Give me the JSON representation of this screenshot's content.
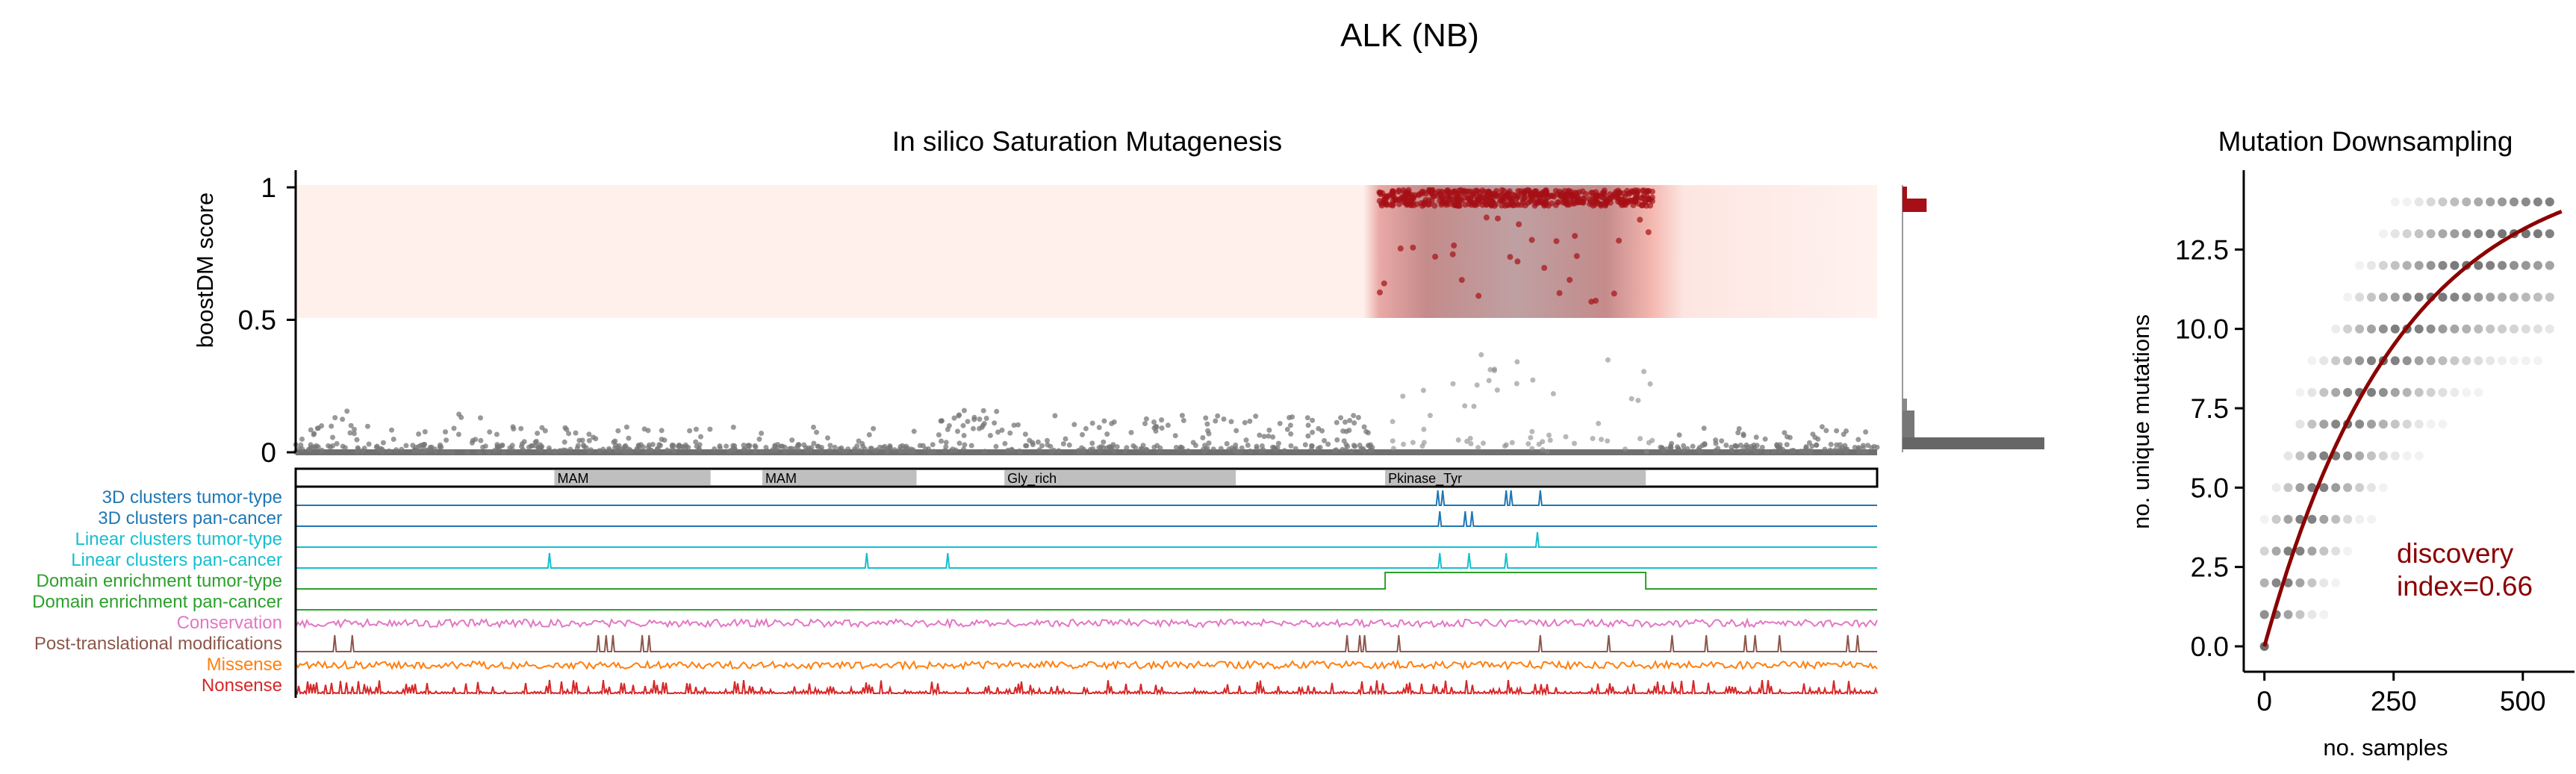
{
  "figure_title": "ALK (NB)",
  "colors": {
    "driver_red": "#a50f15",
    "passenger_gray": "#666666",
    "curve": "#8b0000",
    "track_3d": "#1f77b4",
    "track_linear": "#17becf",
    "track_domain": "#2ca02c",
    "track_conservation": "#e377c2",
    "track_ptm": "#8c564b",
    "track_missense": "#ff7f0e",
    "track_nonsense": "#d62728",
    "domain_fill": "#bfbfbf"
  },
  "chart_data": [
    {
      "type": "scatter",
      "title": "In silico Saturation Mutagenesis",
      "xlabel": "",
      "ylabel": "boostDM score",
      "ylim": [
        0,
        1
      ],
      "yticks": [
        "0",
        "0.5",
        "1"
      ],
      "protein_length": 1620,
      "driver_region": [
        1110,
        1390
      ],
      "domains": [
        {
          "name": "MAM",
          "start": 265,
          "end": 425
        },
        {
          "name": "MAM",
          "start": 478,
          "end": 636
        },
        {
          "name": "Gly_rich",
          "start": 726,
          "end": 963
        },
        {
          "name": "Pkinase_Tyr",
          "start": 1116,
          "end": 1383
        }
      ],
      "score_histogram": {
        "driver_fraction": 0.17,
        "passenger_fraction": 1.0
      },
      "tracks": [
        {
          "label": "3D clusters tumor-type",
          "color": "#1f77b4",
          "kind": "peaks",
          "peaks": [
            1170,
            1175,
            1240,
            1245,
            1275
          ]
        },
        {
          "label": "3D clusters pan-cancer",
          "color": "#1f77b4",
          "kind": "peaks",
          "peaks": [
            1172,
            1198,
            1205
          ]
        },
        {
          "label": "Linear clusters tumor-type",
          "color": "#17becf",
          "kind": "peaks",
          "peaks": [
            1272
          ]
        },
        {
          "label": "Linear clusters pan-cancer",
          "color": "#17becf",
          "kind": "peaks",
          "peaks": [
            260,
            585,
            668,
            1172,
            1202,
            1240
          ]
        },
        {
          "label": "Domain enrichment tumor-type",
          "color": "#2ca02c",
          "kind": "step",
          "start": 1116,
          "end": 1383
        },
        {
          "label": "Domain enrichment pan-cancer",
          "color": "#2ca02c",
          "kind": "flat"
        },
        {
          "label": "Conservation",
          "color": "#e377c2",
          "kind": "noise"
        },
        {
          "label": "Post-translational modifications",
          "color": "#8c564b",
          "kind": "ptm",
          "peaks": [
            40,
            58,
            310,
            318,
            325,
            355,
            362,
            1077,
            1090,
            1095,
            1130,
            1275,
            1345,
            1410,
            1445,
            1485,
            1495,
            1520,
            1590,
            1600
          ]
        },
        {
          "label": "Missense",
          "color": "#ff7f0e",
          "kind": "noise"
        },
        {
          "label": "Nonsense",
          "color": "#d62728",
          "kind": "spikes"
        }
      ]
    },
    {
      "type": "scatter",
      "title": "Mutation Downsampling",
      "xlabel": "no. samples",
      "ylabel": "no. unique mutations",
      "xlim": [
        -40,
        600
      ],
      "ylim": [
        -0.8,
        15
      ],
      "xticks": [
        0,
        250,
        500
      ],
      "yticks": [
        0.0,
        2.5,
        5.0,
        7.5,
        10.0,
        12.5
      ],
      "ytick_labels": [
        "0.0",
        "2.5",
        "5.0",
        "7.5",
        "10.0",
        "12.5"
      ],
      "curve": {
        "x_max": 575,
        "y_max": 13.7
      },
      "annotation": [
        "discovery",
        "index=0.66"
      ]
    }
  ]
}
